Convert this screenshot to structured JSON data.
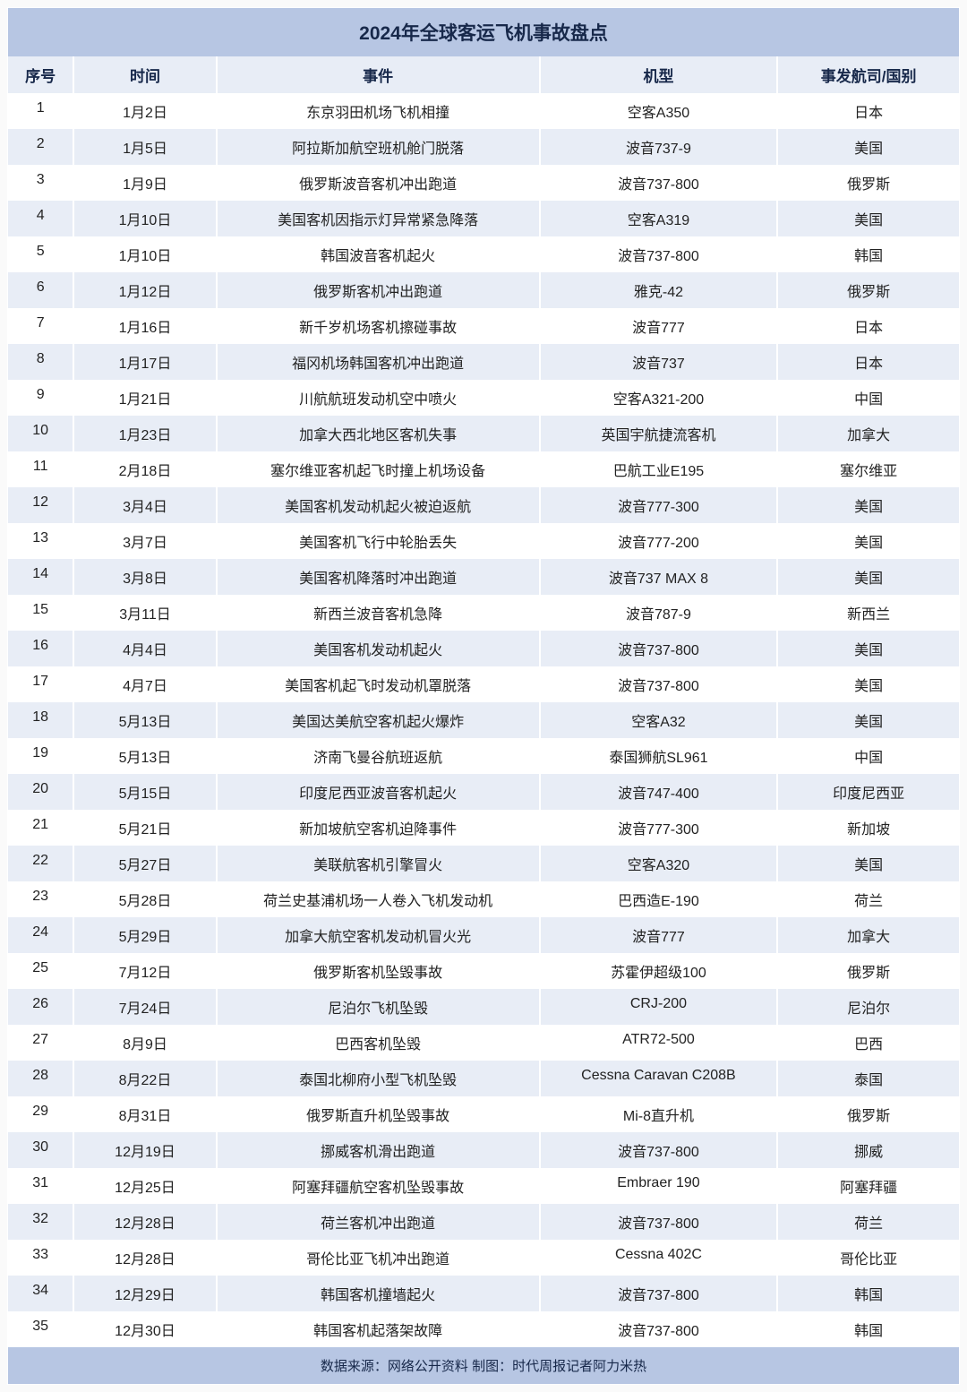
{
  "title": "2024年全球客运飞机事故盘点",
  "columns": {
    "idx": "序号",
    "date": "时间",
    "event": "事件",
    "model": "机型",
    "country": "事发航司/国别"
  },
  "rows": [
    {
      "idx": "1",
      "date": "1月2日",
      "event": "东京羽田机场飞机相撞",
      "model": "空客A350",
      "country": "日本"
    },
    {
      "idx": "2",
      "date": "1月5日",
      "event": "阿拉斯加航空班机舱门脱落",
      "model": "波音737-9",
      "country": "美国"
    },
    {
      "idx": "3",
      "date": "1月9日",
      "event": "俄罗斯波音客机冲出跑道",
      "model": "波音737-800",
      "country": "俄罗斯"
    },
    {
      "idx": "4",
      "date": "1月10日",
      "event": "美国客机因指示灯异常紧急降落",
      "model": "空客A319",
      "country": "美国"
    },
    {
      "idx": "5",
      "date": "1月10日",
      "event": "韩国波音客机起火",
      "model": "波音737-800",
      "country": "韩国"
    },
    {
      "idx": "6",
      "date": "1月12日",
      "event": "俄罗斯客机冲出跑道",
      "model": "雅克-42",
      "country": "俄罗斯"
    },
    {
      "idx": "7",
      "date": "1月16日",
      "event": "新千岁机场客机擦碰事故",
      "model": "波音777",
      "country": "日本"
    },
    {
      "idx": "8",
      "date": "1月17日",
      "event": "福冈机场韩国客机冲出跑道",
      "model": "波音737",
      "country": "日本"
    },
    {
      "idx": "9",
      "date": "1月21日",
      "event": "川航航班发动机空中喷火",
      "model": "空客A321-200",
      "country": "中国"
    },
    {
      "idx": "10",
      "date": "1月23日",
      "event": "加拿大西北地区客机失事",
      "model": "英国宇航捷流客机",
      "country": "加拿大"
    },
    {
      "idx": "11",
      "date": "2月18日",
      "event": "塞尔维亚客机起飞时撞上机场设备",
      "model": "巴航工业E195",
      "country": "塞尔维亚"
    },
    {
      "idx": "12",
      "date": "3月4日",
      "event": "美国客机发动机起火被迫返航",
      "model": "波音777-300",
      "country": "美国"
    },
    {
      "idx": "13",
      "date": "3月7日",
      "event": "美国客机飞行中轮胎丢失",
      "model": "波音777-200",
      "country": "美国"
    },
    {
      "idx": "14",
      "date": "3月8日",
      "event": "美国客机降落时冲出跑道",
      "model": "波音737 MAX 8",
      "country": "美国"
    },
    {
      "idx": "15",
      "date": "3月11日",
      "event": "新西兰波音客机急降",
      "model": "波音787-9",
      "country": "新西兰"
    },
    {
      "idx": "16",
      "date": "4月4日",
      "event": "美国客机发动机起火",
      "model": "波音737-800",
      "country": "美国"
    },
    {
      "idx": "17",
      "date": "4月7日",
      "event": "美国客机起飞时发动机罩脱落",
      "model": "波音737-800",
      "country": "美国"
    },
    {
      "idx": "18",
      "date": "5月13日",
      "event": "美国达美航空客机起火爆炸",
      "model": "空客A32",
      "country": "美国"
    },
    {
      "idx": "19",
      "date": "5月13日",
      "event": "济南飞曼谷航班返航",
      "model": "泰国狮航SL961",
      "country": "中国"
    },
    {
      "idx": "20",
      "date": "5月15日",
      "event": "印度尼西亚波音客机起火",
      "model": "波音747-400",
      "country": "印度尼西亚"
    },
    {
      "idx": "21",
      "date": "5月21日",
      "event": "新加坡航空客机迫降事件",
      "model": "波音777-300",
      "country": "新加坡"
    },
    {
      "idx": "22",
      "date": "5月27日",
      "event": "美联航客机引擎冒火",
      "model": "空客A320",
      "country": "美国"
    },
    {
      "idx": "23",
      "date": "5月28日",
      "event": "荷兰史基浦机场一人卷入飞机发动机",
      "model": "巴西造E-190",
      "country": "荷兰"
    },
    {
      "idx": "24",
      "date": "5月29日",
      "event": "加拿大航空客机发动机冒火光",
      "model": "波音777",
      "country": "加拿大"
    },
    {
      "idx": "25",
      "date": "7月12日",
      "event": "俄罗斯客机坠毁事故",
      "model": "苏霍伊超级100",
      "country": "俄罗斯"
    },
    {
      "idx": "26",
      "date": "7月24日",
      "event": "尼泊尔飞机坠毁",
      "model": "CRJ-200",
      "country": "尼泊尔"
    },
    {
      "idx": "27",
      "date": "8月9日",
      "event": "巴西客机坠毁",
      "model": "ATR72-500",
      "country": "巴西"
    },
    {
      "idx": "28",
      "date": "8月22日",
      "event": "泰国北柳府小型飞机坠毁",
      "model": "Cessna Caravan C208B",
      "country": "泰国"
    },
    {
      "idx": "29",
      "date": "8月31日",
      "event": "俄罗斯直升机坠毁事故",
      "model": "Mi-8直升机",
      "country": "俄罗斯"
    },
    {
      "idx": "30",
      "date": "12月19日",
      "event": "挪威客机滑出跑道",
      "model": "波音737-800",
      "country": "挪威"
    },
    {
      "idx": "31",
      "date": "12月25日",
      "event": "阿塞拜疆航空客机坠毁事故",
      "model": "Embraer 190",
      "country": "阿塞拜疆"
    },
    {
      "idx": "32",
      "date": "12月28日",
      "event": "荷兰客机冲出跑道",
      "model": "波音737-800",
      "country": "荷兰"
    },
    {
      "idx": "33",
      "date": "12月28日",
      "event": "哥伦比亚飞机冲出跑道",
      "model": "Cessna 402C",
      "country": "哥伦比亚"
    },
    {
      "idx": "34",
      "date": "12月29日",
      "event": "韩国客机撞墙起火",
      "model": "波音737-800",
      "country": "韩国"
    },
    {
      "idx": "35",
      "date": "12月30日",
      "event": "韩国客机起落架故障",
      "model": "波音737-800",
      "country": "韩国"
    }
  ],
  "footer": "数据来源：网络公开资料 制图：时代周报记者阿力米热",
  "style": {
    "title_bg": "#b7c6e3",
    "header_bg": "#e8edf6",
    "row_even_bg": "#ffffff",
    "row_odd_bg": "#e8edf6",
    "footer_bg": "#b7c6e3",
    "title_fontsize": 21,
    "header_fontsize": 17,
    "body_fontsize": 16,
    "footer_fontsize": 15,
    "text_color_header": "#17284a",
    "text_color_body": "#222222",
    "col_widths_pct": {
      "idx": 7,
      "date": 15,
      "event": 34,
      "model": 25,
      "country": 19
    }
  }
}
